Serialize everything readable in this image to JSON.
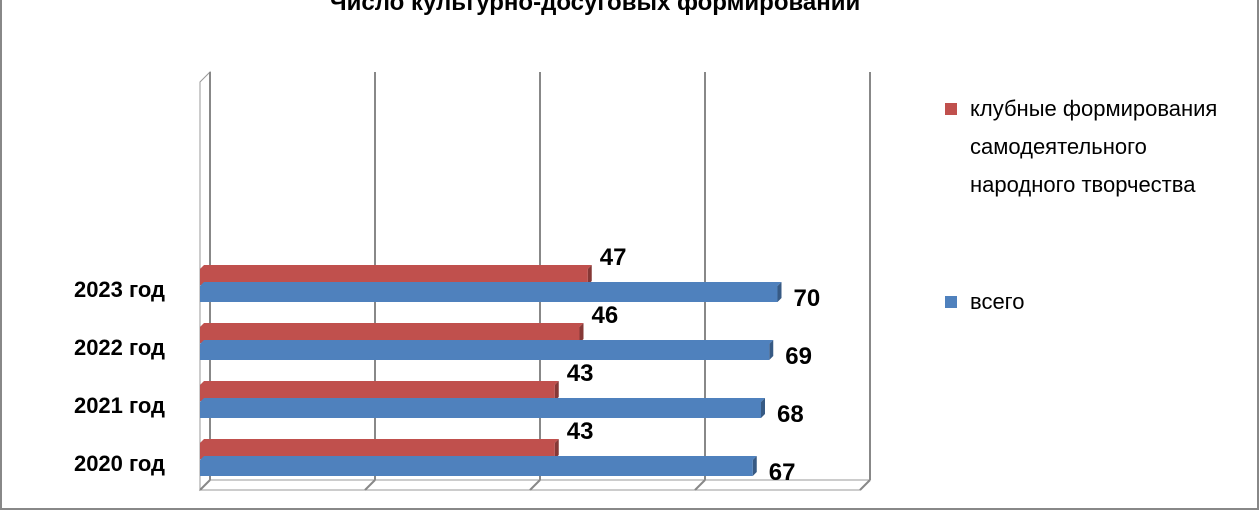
{
  "chart_data": {
    "type": "hbar",
    "title": "Число культурно-досуговых формирований",
    "categories": [
      "2020 год",
      "2021 год",
      "2022 год",
      "2023 год"
    ],
    "series": [
      {
        "name": "клубные формирования самодеятельного народного творчества",
        "color": "#c0504d",
        "values": [
          43,
          43,
          46,
          47
        ]
      },
      {
        "name": "всего",
        "color": "#4f81bd",
        "values": [
          67,
          68,
          69,
          70
        ]
      }
    ],
    "xlim": [
      0,
      80
    ],
    "xticks": [
      0,
      20,
      40,
      60,
      80
    ],
    "grid": true
  }
}
